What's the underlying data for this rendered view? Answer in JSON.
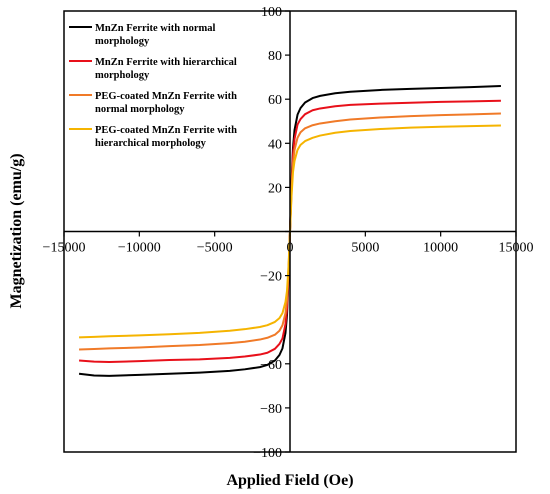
{
  "chart_data": {
    "type": "line",
    "title": "",
    "xlabel": "Applied Field (Oe)",
    "ylabel": "Magnetization (emu/g)",
    "xlim": [
      -15000,
      15000
    ],
    "ylim": [
      -100,
      100
    ],
    "x_ticks": [
      -15000,
      -10000,
      -5000,
      0,
      5000,
      10000,
      15000
    ],
    "y_ticks": [
      -100,
      -80,
      -60,
      -20,
      0,
      20,
      40,
      60,
      80,
      100
    ],
    "x_tick_labels": [
      "−15000",
      "−10000",
      "−5000",
      "0",
      "5000",
      "10000",
      "15000"
    ],
    "y_tick_labels": [
      "−100",
      "−80",
      "−60",
      "−20",
      "0",
      "20",
      "40",
      "60",
      "80",
      "100"
    ],
    "grid": false,
    "legend_position": "top-left",
    "series": [
      {
        "name": "MnZn Ferrite with normal morphology",
        "color": "#000000",
        "legend_lines": [
          "MnZn Ferrite with normal",
          "morphology"
        ],
        "x": [
          -14000,
          -13000,
          -12000,
          -10000,
          -8000,
          -6000,
          -4000,
          -3000,
          -2000,
          -1500,
          -1000,
          -700,
          -500,
          -300,
          -200,
          -100,
          0,
          100,
          200,
          300,
          500,
          700,
          1000,
          1500,
          2000,
          3000,
          4000,
          6000,
          8000,
          10000,
          12000,
          14000
        ],
        "y": [
          -64.5,
          -65.3,
          -65.5,
          -65.0,
          -64.5,
          -64.0,
          -63.2,
          -62.5,
          -61.5,
          -60.5,
          -58.5,
          -56.0,
          -53.0,
          -46.0,
          -38.0,
          -22.0,
          0,
          22.0,
          38.0,
          46.0,
          53.0,
          56.0,
          58.5,
          60.5,
          61.5,
          62.7,
          63.4,
          64.2,
          64.7,
          65.1,
          65.5,
          66.0
        ]
      },
      {
        "name": "MnZn Ferrite with hierarchical morphology",
        "color": "#e8101a",
        "legend_lines": [
          "MnZn Ferrite with hierarchical",
          "morphology"
        ],
        "x": [
          -14000,
          -13000,
          -12000,
          -10000,
          -8000,
          -6000,
          -4000,
          -3000,
          -2000,
          -1500,
          -1000,
          -700,
          -500,
          -300,
          -200,
          -100,
          0,
          100,
          200,
          300,
          500,
          700,
          1000,
          1500,
          2000,
          3000,
          4000,
          6000,
          8000,
          10000,
          12000,
          14000
        ],
        "y": [
          -58.5,
          -59.0,
          -59.2,
          -58.8,
          -58.3,
          -58.0,
          -57.3,
          -56.7,
          -55.8,
          -55.0,
          -53.2,
          -51.0,
          -48.5,
          -42.0,
          -35.0,
          -20.0,
          0,
          20.0,
          35.0,
          42.0,
          48.5,
          51.0,
          53.2,
          55.0,
          55.8,
          56.8,
          57.4,
          58.0,
          58.4,
          58.8,
          59.0,
          59.3
        ]
      },
      {
        "name": "PEG-coated MnZn Ferrite with normal morphology",
        "color": "#f07a28",
        "legend_lines": [
          "PEG-coated MnZn Ferrite with",
          "normal morphology"
        ],
        "x": [
          -14000,
          -13000,
          -12000,
          -10000,
          -8000,
          -6000,
          -4000,
          -3000,
          -2000,
          -1500,
          -1000,
          -700,
          -500,
          -300,
          -200,
          -100,
          0,
          100,
          200,
          300,
          500,
          700,
          1000,
          1500,
          2000,
          3000,
          4000,
          6000,
          8000,
          10000,
          12000,
          14000
        ],
        "y": [
          -53.5,
          -53.3,
          -53.0,
          -52.6,
          -52.0,
          -51.5,
          -50.6,
          -50.0,
          -49.0,
          -48.2,
          -46.8,
          -45.0,
          -42.5,
          -37.0,
          -31.0,
          -18.0,
          0,
          18.0,
          31.0,
          37.0,
          42.5,
          45.0,
          46.8,
          48.2,
          49.0,
          50.0,
          50.8,
          51.7,
          52.3,
          52.8,
          53.1,
          53.5
        ]
      },
      {
        "name": "PEG-coated MnZn Ferrite with hierarchical morphology",
        "color": "#f5b400",
        "legend_lines": [
          "PEG-coated MnZn Ferrite with",
          "hierarchical morphology"
        ],
        "x": [
          -14000,
          -13000,
          -12000,
          -10000,
          -8000,
          -6000,
          -4000,
          -3000,
          -2000,
          -1500,
          -1000,
          -700,
          -500,
          -300,
          -200,
          -100,
          0,
          100,
          200,
          300,
          500,
          700,
          1000,
          1500,
          2000,
          3000,
          4000,
          6000,
          8000,
          10000,
          12000,
          14000
        ],
        "y": [
          -48.0,
          -47.8,
          -47.5,
          -47.1,
          -46.6,
          -46.0,
          -45.0,
          -44.3,
          -43.3,
          -42.5,
          -41.0,
          -39.3,
          -37.0,
          -32.0,
          -27.0,
          -16.0,
          0,
          16.0,
          27.0,
          32.0,
          37.0,
          39.3,
          41.0,
          42.5,
          43.5,
          44.8,
          45.6,
          46.5,
          47.1,
          47.5,
          47.8,
          48.1
        ]
      }
    ]
  }
}
